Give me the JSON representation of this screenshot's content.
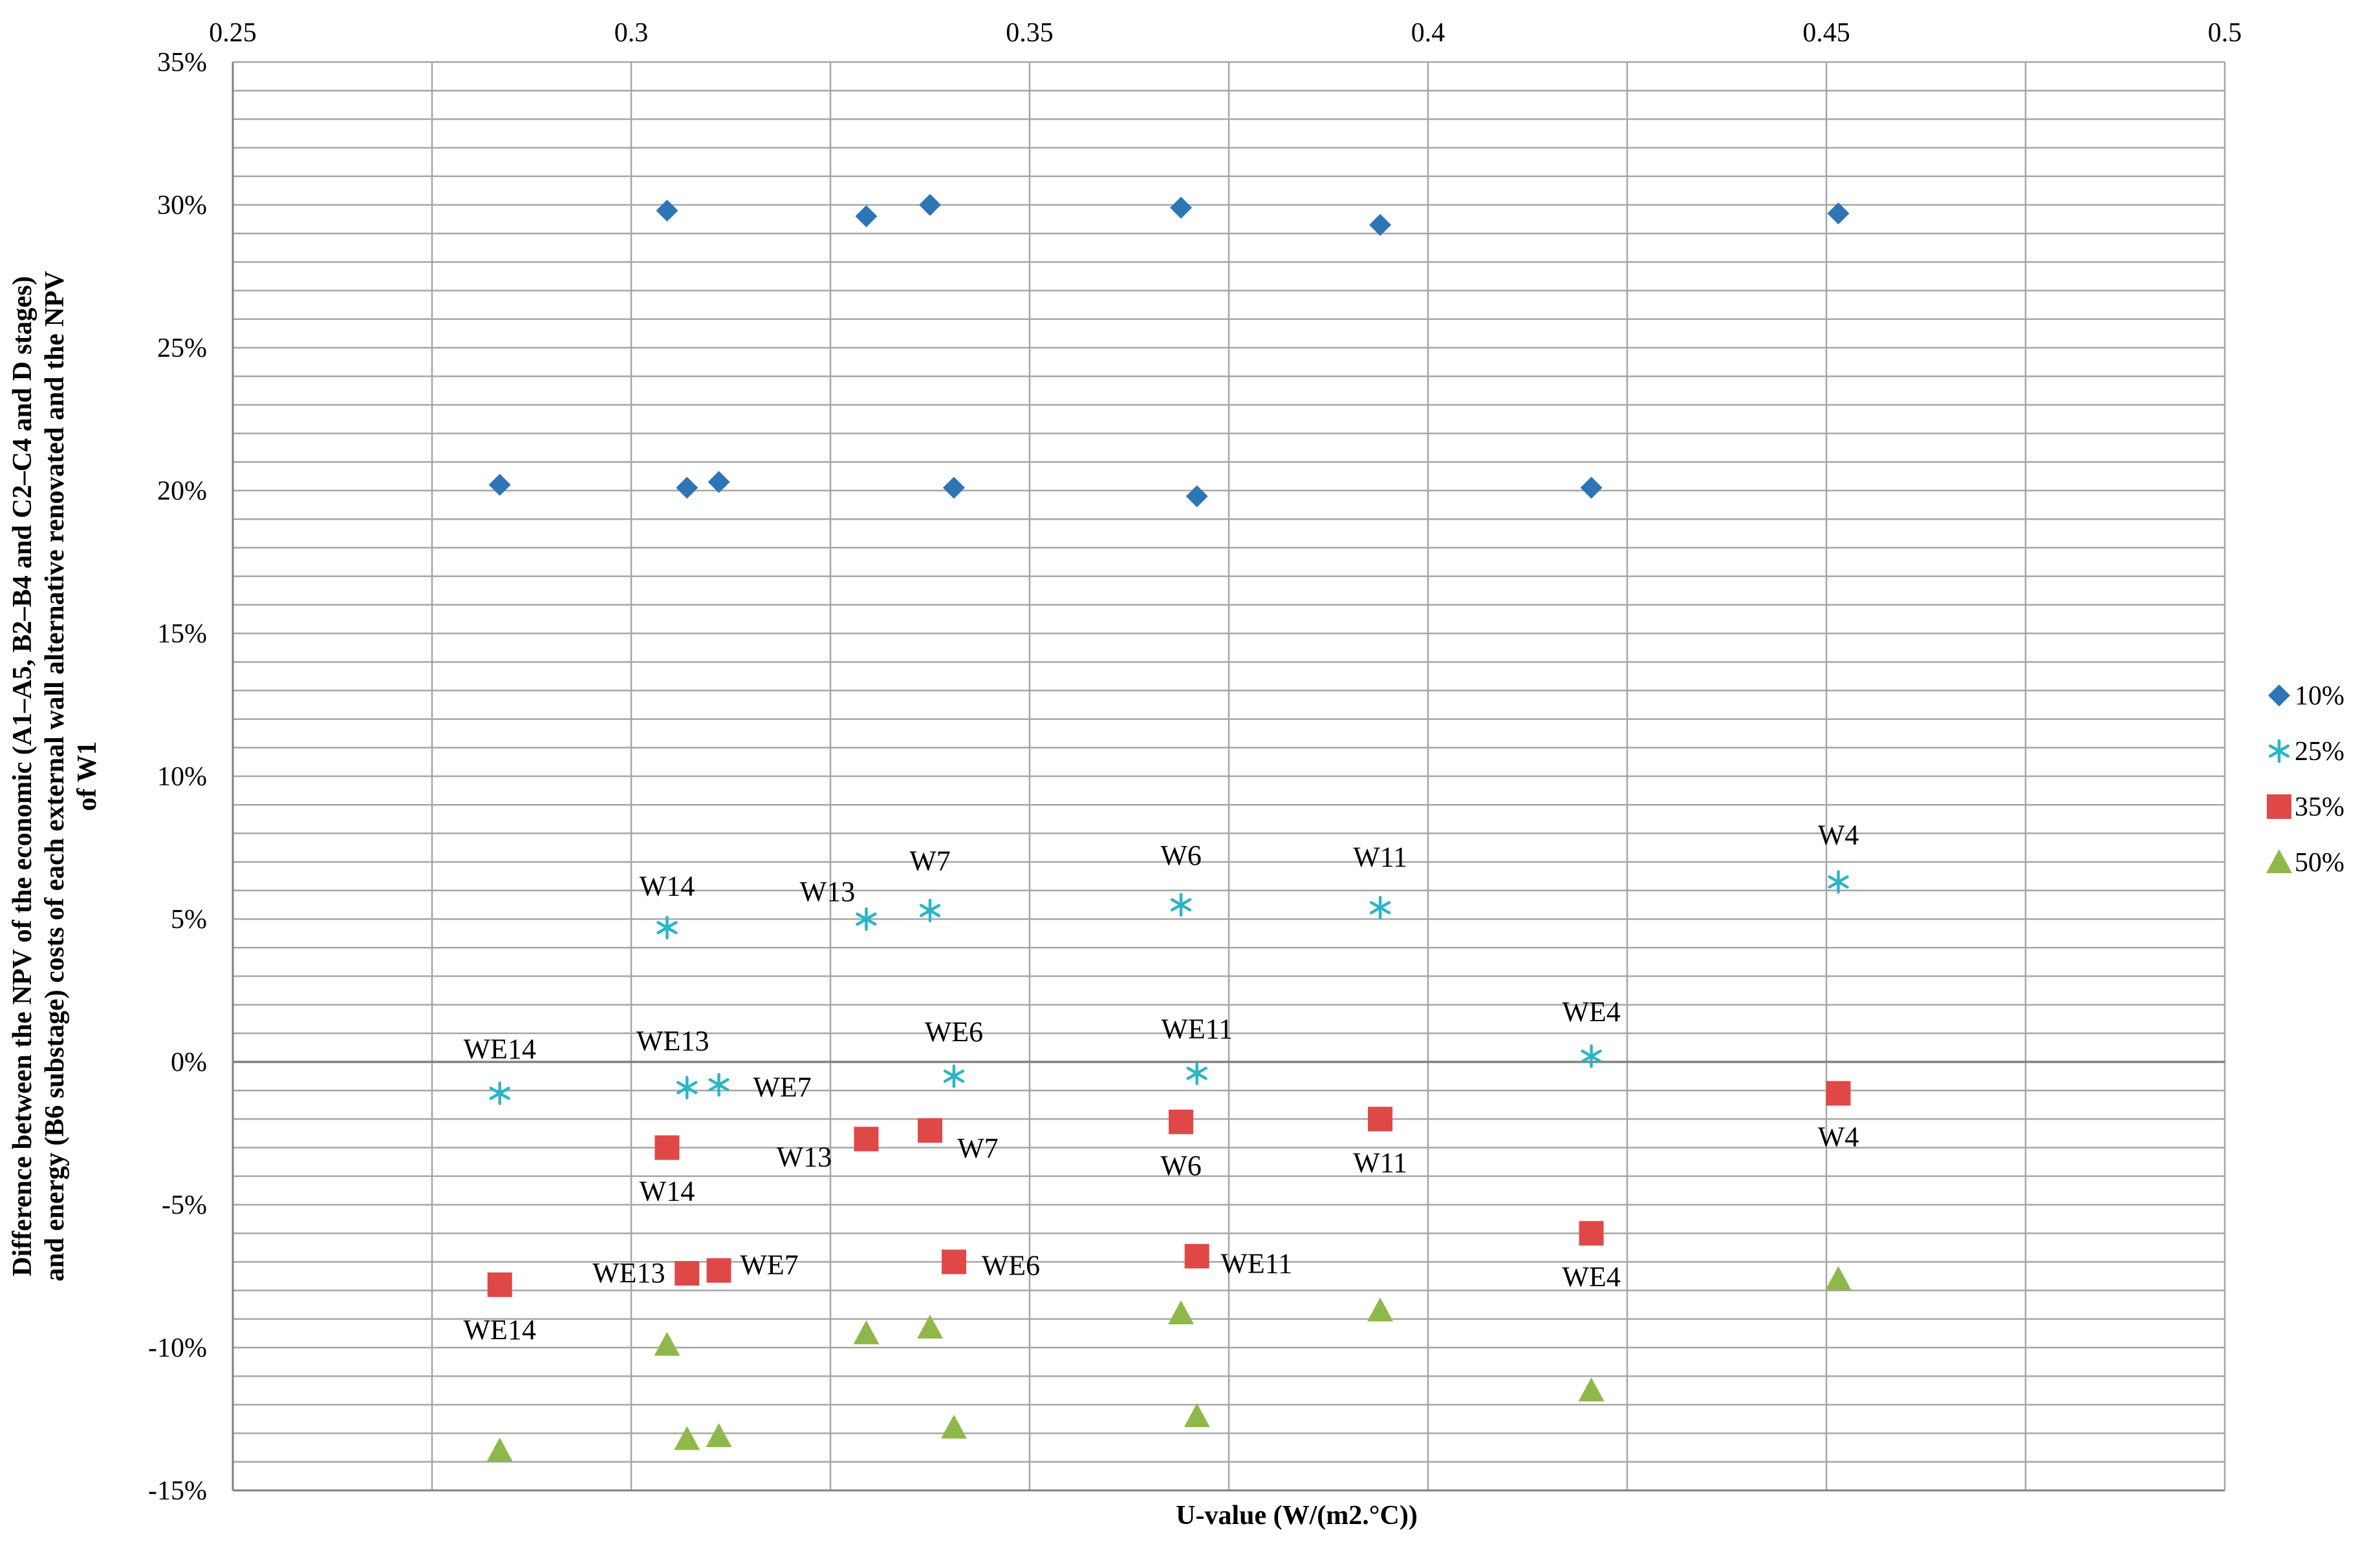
{
  "chart_data": {
    "type": "scatter",
    "xlabel": "U-value (W/(m2.°C))",
    "ylabel": [
      "Difference between the NPV of the economic (A1–A5, B2–B4 and C2–C4 and D stages)",
      "and energy (B6 substage) costs of each external wall alternative renovated and the NPV",
      "of W1"
    ],
    "xlim": [
      0.25,
      0.5
    ],
    "ylim": [
      -15,
      35
    ],
    "x_ticks": [
      "0.25",
      "0.3",
      "0.35",
      "0.4",
      "0.45",
      "0.5"
    ],
    "y_ticks": [
      "-15%",
      "-10%",
      "-5%",
      "0%",
      "5%",
      "10%",
      "15%",
      "20%",
      "25%",
      "30%",
      "35%"
    ],
    "x_axis_position": "top",
    "grid": true,
    "legend_position": "right",
    "series": [
      {
        "name": "10%",
        "marker": "diamond",
        "color": "#2E75B6",
        "points": [
          {
            "x": 0.2835,
            "y": 20.2
          },
          {
            "x": 0.3045,
            "y": 29.8
          },
          {
            "x": 0.307,
            "y": 20.1
          },
          {
            "x": 0.311,
            "y": 20.3
          },
          {
            "x": 0.3295,
            "y": 29.6
          },
          {
            "x": 0.3375,
            "y": 30.0
          },
          {
            "x": 0.3405,
            "y": 20.1
          },
          {
            "x": 0.369,
            "y": 29.9
          },
          {
            "x": 0.371,
            "y": 19.8
          },
          {
            "x": 0.394,
            "y": 29.3
          },
          {
            "x": 0.4205,
            "y": 20.1
          },
          {
            "x": 0.4515,
            "y": 29.7
          }
        ]
      },
      {
        "name": "25%",
        "marker": "asterisk",
        "color": "#2BB5C8",
        "points": [
          {
            "x": 0.2835,
            "y": -1.1
          },
          {
            "x": 0.3045,
            "y": 4.7
          },
          {
            "x": 0.307,
            "y": -0.9
          },
          {
            "x": 0.311,
            "y": -0.8
          },
          {
            "x": 0.3295,
            "y": 5.0
          },
          {
            "x": 0.3375,
            "y": 5.3
          },
          {
            "x": 0.3405,
            "y": -0.5
          },
          {
            "x": 0.369,
            "y": 5.5
          },
          {
            "x": 0.371,
            "y": -0.4
          },
          {
            "x": 0.394,
            "y": 5.4
          },
          {
            "x": 0.4205,
            "y": 0.2
          },
          {
            "x": 0.4515,
            "y": 6.3
          }
        ]
      },
      {
        "name": "35%",
        "marker": "square",
        "color": "#E04848",
        "points": [
          {
            "x": 0.2835,
            "y": -7.8
          },
          {
            "x": 0.3045,
            "y": -3.0
          },
          {
            "x": 0.307,
            "y": -7.4
          },
          {
            "x": 0.311,
            "y": -7.3
          },
          {
            "x": 0.3295,
            "y": -2.7
          },
          {
            "x": 0.3375,
            "y": -2.4
          },
          {
            "x": 0.3405,
            "y": -7.0
          },
          {
            "x": 0.369,
            "y": -2.1
          },
          {
            "x": 0.371,
            "y": -6.8
          },
          {
            "x": 0.394,
            "y": -2.0
          },
          {
            "x": 0.4205,
            "y": -6.0
          },
          {
            "x": 0.4515,
            "y": -1.1
          }
        ]
      },
      {
        "name": "50%",
        "marker": "triangle",
        "color": "#8FB84A",
        "points": [
          {
            "x": 0.2835,
            "y": -13.6
          },
          {
            "x": 0.3045,
            "y": -9.9
          },
          {
            "x": 0.307,
            "y": -13.2
          },
          {
            "x": 0.311,
            "y": -13.1
          },
          {
            "x": 0.3295,
            "y": -9.5
          },
          {
            "x": 0.3375,
            "y": -9.3
          },
          {
            "x": 0.3405,
            "y": -12.8
          },
          {
            "x": 0.369,
            "y": -8.8
          },
          {
            "x": 0.371,
            "y": -12.4
          },
          {
            "x": 0.394,
            "y": -8.7
          },
          {
            "x": 0.4205,
            "y": -11.5
          },
          {
            "x": 0.4515,
            "y": -7.6
          }
        ]
      }
    ],
    "annotations": [
      {
        "text": "W14",
        "x": 0.3045,
        "y": 4.7
      },
      {
        "text": "W13",
        "x": 0.3295,
        "y": 5.0
      },
      {
        "text": "W7",
        "x": 0.3375,
        "y": 5.3
      },
      {
        "text": "W6",
        "x": 0.369,
        "y": 5.5
      },
      {
        "text": "W11",
        "x": 0.394,
        "y": 5.4
      },
      {
        "text": "W4",
        "x": 0.4515,
        "y": 6.3
      },
      {
        "text": "WE14",
        "x": 0.2835,
        "y": -1.1
      },
      {
        "text": "WE13",
        "x": 0.307,
        "y": -0.9
      },
      {
        "text": "WE7",
        "x": 0.311,
        "y": -0.8
      },
      {
        "text": "WE6",
        "x": 0.3405,
        "y": -0.5
      },
      {
        "text": "WE11",
        "x": 0.371,
        "y": -0.4
      },
      {
        "text": "WE4",
        "x": 0.4205,
        "y": 0.2
      },
      {
        "text": "W14",
        "x": 0.3045,
        "y": -3.0
      },
      {
        "text": "W13",
        "x": 0.3295,
        "y": -2.7
      },
      {
        "text": "W7",
        "x": 0.3375,
        "y": -2.4
      },
      {
        "text": "W6",
        "x": 0.369,
        "y": -2.1
      },
      {
        "text": "W11",
        "x": 0.394,
        "y": -2.0
      },
      {
        "text": "W4",
        "x": 0.4515,
        "y": -1.1
      },
      {
        "text": "WE14",
        "x": 0.2835,
        "y": -7.8
      },
      {
        "text": "WE13",
        "x": 0.307,
        "y": -7.4
      },
      {
        "text": "WE7",
        "x": 0.311,
        "y": -7.3
      },
      {
        "text": "WE6",
        "x": 0.3405,
        "y": -7.0
      },
      {
        "text": "WE11",
        "x": 0.371,
        "y": -6.8
      },
      {
        "text": "WE4",
        "x": 0.4205,
        "y": -6.0
      }
    ]
  }
}
